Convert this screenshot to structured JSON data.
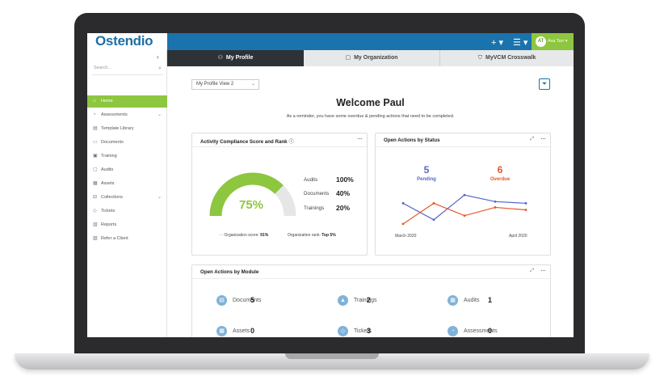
{
  "app": {
    "brand": "Ostendio"
  },
  "topbar": {
    "plus_icon": "+ ▾",
    "menu_icon": "☰ ▾",
    "user_initials": "AT",
    "user_name": "Ava Tarr ▾"
  },
  "sidebar": {
    "collapse_glyph": "‹",
    "search_placeholder": "Search...",
    "items": [
      {
        "label": "Home",
        "icon": "home-icon",
        "glyph": "⌂",
        "active": true
      },
      {
        "label": "Assessments",
        "icon": "assessment-icon",
        "glyph": "◔",
        "chevron": "⌄"
      },
      {
        "label": "Template Library",
        "icon": "library-icon",
        "glyph": "▤"
      },
      {
        "label": "Documents",
        "icon": "document-icon",
        "glyph": "▭"
      },
      {
        "label": "Training",
        "icon": "training-icon",
        "glyph": "▣"
      },
      {
        "label": "Audits",
        "icon": "audit-icon",
        "glyph": "▢"
      },
      {
        "label": "Assets",
        "icon": "assets-icon",
        "glyph": "▦"
      },
      {
        "label": "Collections",
        "icon": "collections-icon",
        "glyph": "⊟",
        "chevron": "⌄"
      },
      {
        "label": "Tickets",
        "icon": "ticket-icon",
        "glyph": "◇"
      },
      {
        "label": "Reports",
        "icon": "report-icon",
        "glyph": "▥"
      },
      {
        "label": "Refer a Client",
        "icon": "refer-icon",
        "glyph": "▧"
      }
    ]
  },
  "tabs": [
    {
      "label": "My Profile",
      "icon": "user-icon",
      "glyph": "👤"
    },
    {
      "label": "My Organization",
      "icon": "org-icon",
      "glyph": "▢"
    },
    {
      "label": "MyVCM Crosswalk",
      "icon": "shield-icon",
      "glyph": "⛉"
    }
  ],
  "main": {
    "view_select": "My Profile View 2",
    "welcome": "Welcome Paul",
    "reminder": "As a reminder, you have some overdue & pending actions that need to be completed."
  },
  "compliance_card": {
    "title": "Activity Compliance Score and Rank",
    "score": "75%",
    "score_fraction": 0.75,
    "rows": [
      {
        "label": "Audits",
        "value": "100%"
      },
      {
        "label": "Documents",
        "value": "40%"
      },
      {
        "label": "Trainings",
        "value": "20%"
      }
    ],
    "org_score_label": "Organization score:",
    "org_score": "91%",
    "org_rank_label": "Organization rank:",
    "org_rank": "Top 5%"
  },
  "status_card": {
    "title": "Open Actions by Status",
    "pending_count": "5",
    "pending_label": "Pending",
    "overdue_count": "6",
    "overdue_label": "Overdue",
    "x_start": "March 2020",
    "x_end": "April 2020",
    "colors": {
      "pending": "#5566cc",
      "overdue": "#e2572b"
    }
  },
  "module_card": {
    "title": "Open Actions by Module",
    "modules": [
      {
        "label": "Documents",
        "count": "5",
        "icon": "documents-icon",
        "glyph": "▤"
      },
      {
        "label": "Trainings",
        "count": "2",
        "icon": "graduation-cap-icon",
        "glyph": "▲"
      },
      {
        "label": "Audits",
        "count": "1",
        "icon": "audits-icon",
        "glyph": "▦"
      },
      {
        "label": "Assets",
        "count": "0",
        "icon": "assets-icon",
        "glyph": "▦"
      },
      {
        "label": "Tickets",
        "count": "3",
        "icon": "ticket-icon",
        "glyph": "◇"
      },
      {
        "label": "Assessments",
        "count": "0",
        "icon": "assessment-icon",
        "glyph": "◔"
      }
    ]
  },
  "chart_data": {
    "type": "line",
    "title": "Open Actions by Status",
    "x": [
      "March 2020",
      "",
      "",
      "",
      "April 2020"
    ],
    "series": [
      {
        "name": "Pending",
        "values": [
          3,
          1,
          4,
          3.2,
          3.0
        ]
      },
      {
        "name": "Overdue",
        "values": [
          0.5,
          3,
          1.5,
          2.5,
          2.2
        ]
      }
    ],
    "grid": false
  },
  "colors": {
    "brand_blue": "#1a73ad",
    "accent_green": "#8dc63f",
    "tab_dark": "#2d3237"
  }
}
